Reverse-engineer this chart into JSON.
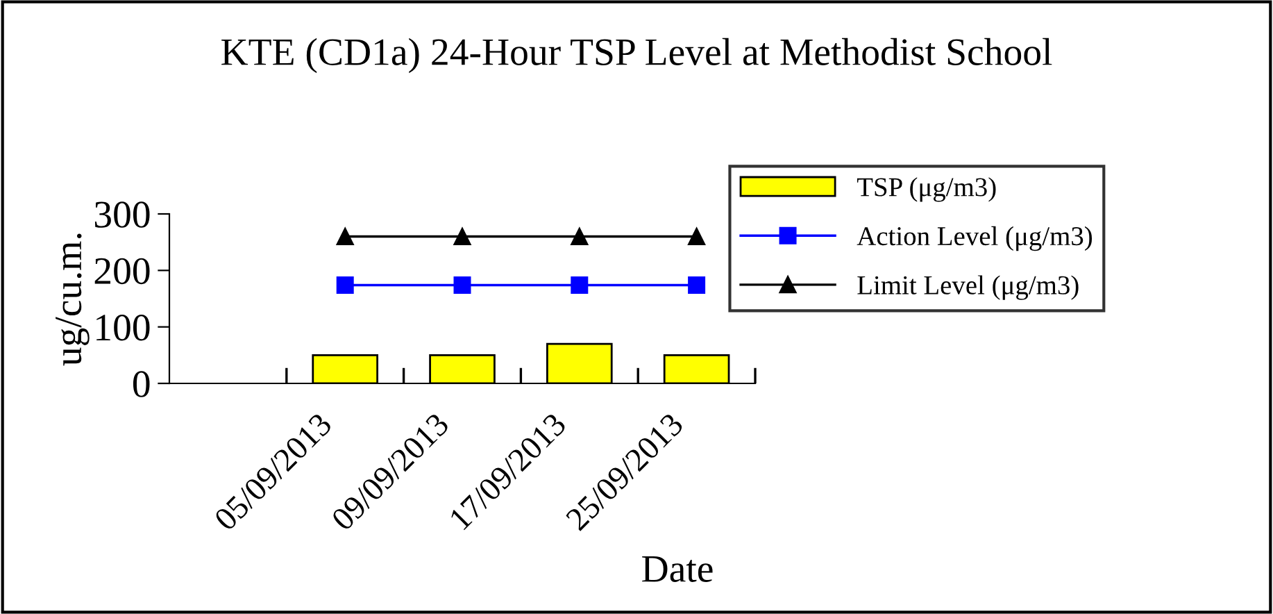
{
  "chart_data": {
    "type": "bar",
    "title": "KTE (CD1a) 24-Hour TSP Level at Methodist School",
    "xlabel": "Date",
    "ylabel": "ug/cu.m.",
    "categories": [
      null,
      "05/09/2013",
      "09/09/2013",
      "17/09/2013",
      "25/09/2013"
    ],
    "series": [
      {
        "name": "TSP (μg/m3)",
        "color": "#ffff00",
        "values": [
          null,
          50,
          50,
          70,
          50
        ]
      },
      {
        "name": "Action Level (μg/m3)",
        "type": "line",
        "color": "#0000ff",
        "marker": "square",
        "values": [
          null,
          174,
          174,
          174,
          174
        ]
      },
      {
        "name": "Limit Level (μg/m3)",
        "type": "line",
        "color": "#000000",
        "marker": "triangle",
        "values": [
          null,
          260,
          260,
          260,
          260
        ]
      }
    ],
    "ylim": [
      0,
      300
    ],
    "yticks": [
      0,
      100,
      200,
      300
    ],
    "grid": false,
    "legend": "right"
  }
}
